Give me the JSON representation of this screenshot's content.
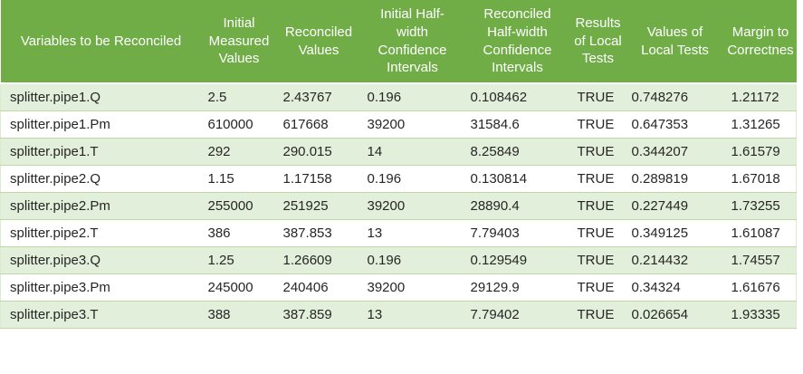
{
  "theme": {
    "header_background": "#70AD47",
    "header_text": "#FFFFFF",
    "banded_row_background": "#E2EFDA",
    "plain_row_background": "#FFFFFF",
    "gridline": "#BFD8A6",
    "gridline_soft": "#DCEACD",
    "cell_text": "#262626",
    "page_background": "#FFFFFF"
  },
  "table": {
    "columns": [
      {
        "id": "variables",
        "label": "Variables to be Reconciled"
      },
      {
        "id": "initial-measured-values",
        "label": "Initial\nMeasured\nValues"
      },
      {
        "id": "reconciled-values",
        "label": "Reconciled\nValues"
      },
      {
        "id": "initial-halfwidth-confidence-intervals",
        "label": "Initial Half-\nwidth\nConfidence\nIntervals"
      },
      {
        "id": "reconciled-halfwidth-confidence-intervals",
        "label": "Reconciled\nHalf-width\nConfidence\nIntervals"
      },
      {
        "id": "results-of-local-tests",
        "label": "Results\nof Local\nTests"
      },
      {
        "id": "values-of-local-tests",
        "label": "Values of\nLocal Tests"
      },
      {
        "id": "margin-to-correctness",
        "label": "Margin to\nCorrectnes"
      }
    ],
    "rows": [
      [
        "splitter.pipe1.Q",
        "2.5",
        "2.43767",
        "0.196",
        "0.108462",
        "TRUE",
        "0.748276",
        "1.21172"
      ],
      [
        "splitter.pipe1.Pm",
        "610000",
        "617668",
        "39200",
        "31584.6",
        "TRUE",
        "0.647353",
        "1.31265"
      ],
      [
        "splitter.pipe1.T",
        "292",
        "290.015",
        "14",
        "8.25849",
        "TRUE",
        "0.344207",
        "1.61579"
      ],
      [
        "splitter.pipe2.Q",
        "1.15",
        "1.17158",
        "0.196",
        "0.130814",
        "TRUE",
        "0.289819",
        "1.67018"
      ],
      [
        "splitter.pipe2.Pm",
        "255000",
        "251925",
        "39200",
        "28890.4",
        "TRUE",
        "0.227449",
        "1.73255"
      ],
      [
        "splitter.pipe2.T",
        "386",
        "387.853",
        "13",
        "7.79403",
        "TRUE",
        "0.349125",
        "1.61087"
      ],
      [
        "splitter.pipe3.Q",
        "1.25",
        "1.26609",
        "0.196",
        "0.129549",
        "TRUE",
        "0.214432",
        "1.74557"
      ],
      [
        "splitter.pipe3.Pm",
        "245000",
        "240406",
        "39200",
        "29129.9",
        "TRUE",
        "0.34324",
        "1.61676"
      ],
      [
        "splitter.pipe3.T",
        "388",
        "387.859",
        "13",
        "7.79402",
        "TRUE",
        "0.026654",
        "1.93335"
      ]
    ]
  },
  "chart_data": {
    "type": "table",
    "title": "",
    "columns": [
      "Variables to be Reconciled",
      "Initial Measured Values",
      "Reconciled Values",
      "Initial Half-width Confidence Intervals",
      "Reconciled Half-width Confidence Intervals",
      "Results of Local Tests",
      "Values of Local Tests",
      "Margin to Correctnes"
    ],
    "rows": [
      [
        "splitter.pipe1.Q",
        2.5,
        2.43767,
        0.196,
        0.108462,
        "TRUE",
        0.748276,
        1.21172
      ],
      [
        "splitter.pipe1.Pm",
        610000,
        617668,
        39200,
        31584.6,
        "TRUE",
        0.647353,
        1.31265
      ],
      [
        "splitter.pipe1.T",
        292,
        290.015,
        14,
        8.25849,
        "TRUE",
        0.344207,
        1.61579
      ],
      [
        "splitter.pipe2.Q",
        1.15,
        1.17158,
        0.196,
        0.130814,
        "TRUE",
        0.289819,
        1.67018
      ],
      [
        "splitter.pipe2.Pm",
        255000,
        251925,
        39200,
        28890.4,
        "TRUE",
        0.227449,
        1.73255
      ],
      [
        "splitter.pipe2.T",
        386,
        387.853,
        13,
        7.79403,
        "TRUE",
        0.349125,
        1.61087
      ],
      [
        "splitter.pipe3.Q",
        1.25,
        1.26609,
        0.196,
        0.129549,
        "TRUE",
        0.214432,
        1.74557
      ],
      [
        "splitter.pipe3.Pm",
        245000,
        240406,
        39200,
        29129.9,
        "TRUE",
        0.34324,
        1.61676
      ],
      [
        "splitter.pipe3.T",
        388,
        387.859,
        13,
        7.79402,
        "TRUE",
        0.026654,
        1.93335
      ]
    ]
  }
}
